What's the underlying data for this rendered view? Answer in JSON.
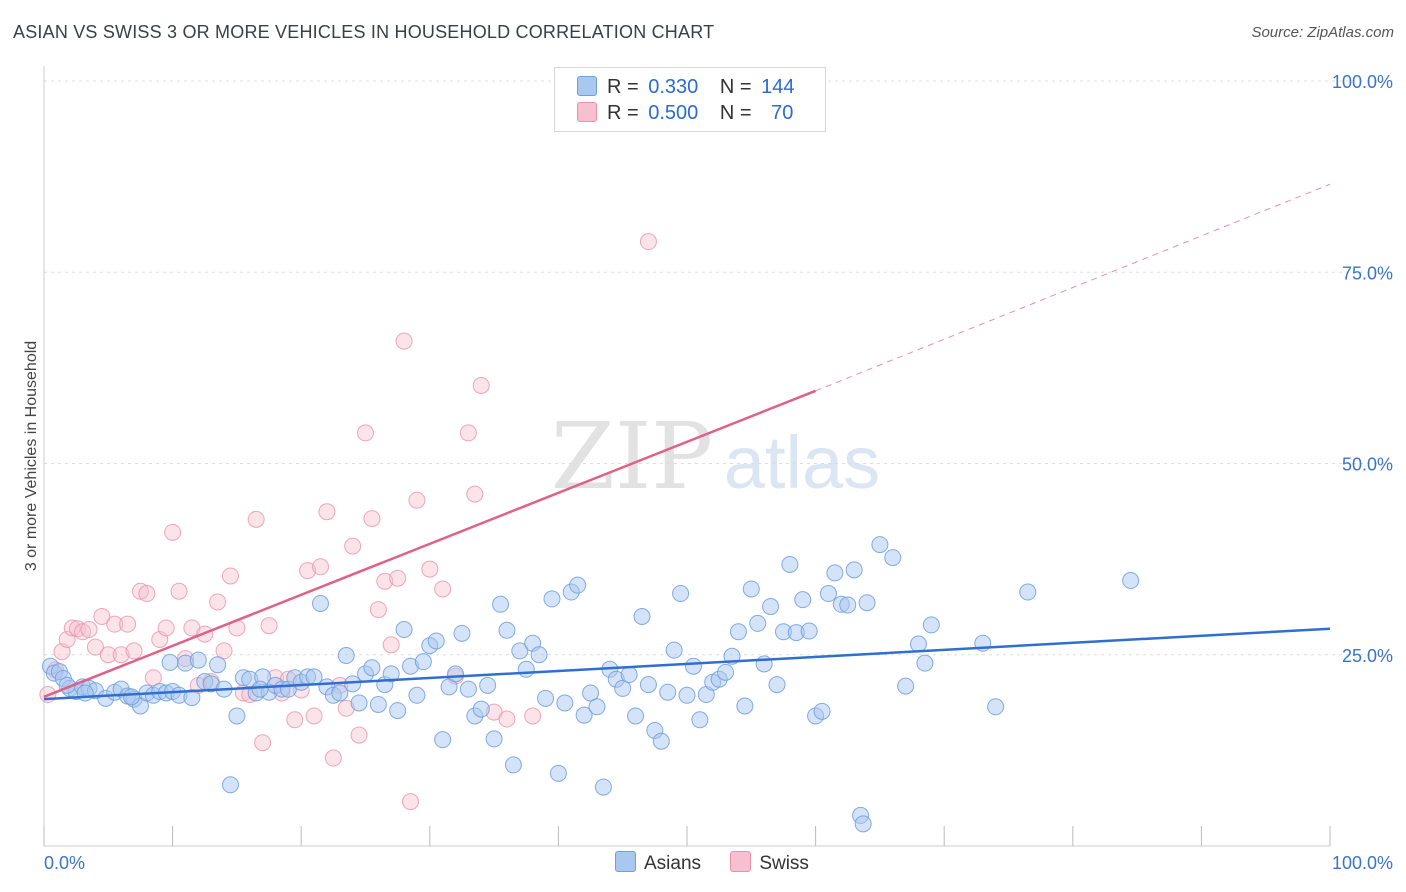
{
  "title": "ASIAN VS SWISS 3 OR MORE VEHICLES IN HOUSEHOLD CORRELATION CHART",
  "source": "Source: ZipAtlas.com",
  "watermark": {
    "zip": "ZIP",
    "atlas": "atlas"
  },
  "legend_top": [
    {
      "r_label": "R =",
      "r_value": "0.330",
      "n_label": "N =",
      "n_value": "144"
    },
    {
      "r_label": "R =",
      "r_value": "0.500",
      "n_label": "N =",
      "n_value": "70"
    }
  ],
  "legend_bottom": [
    "Asians",
    "Swiss"
  ],
  "colors": {
    "asians_fill": "#a9c8f0",
    "asians_stroke": "#6f9fdc",
    "asians_line": "#2f6fd0",
    "swiss_fill": "#f7c0d0",
    "swiss_stroke": "#ea92ac",
    "swiss_line": "#e06088",
    "tick_label": "#3a74c8",
    "grid": "#dddddd"
  },
  "chart_data": {
    "type": "scatter",
    "title": "ASIAN VS SWISS 3 OR MORE VEHICLES IN HOUSEHOLD CORRELATION CHART",
    "xlabel": "",
    "ylabel": "3 or more Vehicles in Household",
    "xlim": [
      0,
      100
    ],
    "ylim": [
      0,
      102
    ],
    "x_tick_labels": [
      "0.0%",
      "100.0%"
    ],
    "y_tick_labels": [
      "25.0%",
      "50.0%",
      "75.0%",
      "100.0%"
    ],
    "y_ticks": [
      25,
      50,
      75,
      100
    ],
    "grid": true,
    "legend_position": "top-center",
    "series": [
      {
        "name": "Asians",
        "r": 0.33,
        "n": 144,
        "trend": {
          "x": [
            0,
            100
          ],
          "y": [
            19.2,
            28.4
          ],
          "extrapolated_to": 100
        },
        "points": [
          [
            0.5,
            23.5
          ],
          [
            0.8,
            22.6
          ],
          [
            1.2,
            22.8
          ],
          [
            1.5,
            21.9
          ],
          [
            2.0,
            20.6
          ],
          [
            2.5,
            20.2
          ],
          [
            3.0,
            20.8
          ],
          [
            3.5,
            20.6
          ],
          [
            4.0,
            20.3
          ],
          [
            4.8,
            19.3
          ],
          [
            5.5,
            20.1
          ],
          [
            6.0,
            20.5
          ],
          [
            6.5,
            19.6
          ],
          [
            7.0,
            19.2
          ],
          [
            7.5,
            18.3
          ],
          [
            8.0,
            20.0
          ],
          [
            8.5,
            19.7
          ],
          [
            9.0,
            20.2
          ],
          [
            9.5,
            20.0
          ],
          [
            10.0,
            20.2
          ],
          [
            10.5,
            19.7
          ],
          [
            11.0,
            23.9
          ],
          [
            11.5,
            19.4
          ],
          [
            12.0,
            24.3
          ],
          [
            12.5,
            21.5
          ],
          [
            13.0,
            21.2
          ],
          [
            13.5,
            23.7
          ],
          [
            14.0,
            20.5
          ],
          [
            14.5,
            8.0
          ],
          [
            15.0,
            17.0
          ],
          [
            15.5,
            22.0
          ],
          [
            16.0,
            21.8
          ],
          [
            16.5,
            20.0
          ],
          [
            17.0,
            22.1
          ],
          [
            17.5,
            20.1
          ],
          [
            18.0,
            21.0
          ],
          [
            18.5,
            20.5
          ],
          [
            19.0,
            20.5
          ],
          [
            19.5,
            22.0
          ],
          [
            20.0,
            21.4
          ],
          [
            20.5,
            22.1
          ],
          [
            21.0,
            22.1
          ],
          [
            21.5,
            31.7
          ],
          [
            22.0,
            20.8
          ],
          [
            22.5,
            19.7
          ],
          [
            23.0,
            20.0
          ],
          [
            23.5,
            24.9
          ],
          [
            24.0,
            21.2
          ],
          [
            24.5,
            18.7
          ],
          [
            25.0,
            22.5
          ],
          [
            25.5,
            23.3
          ],
          [
            26.0,
            18.5
          ],
          [
            26.5,
            21.1
          ],
          [
            27.0,
            22.5
          ],
          [
            27.5,
            17.7
          ],
          [
            28.0,
            28.3
          ],
          [
            28.5,
            23.5
          ],
          [
            29.0,
            19.7
          ],
          [
            29.5,
            24.1
          ],
          [
            30.0,
            26.2
          ],
          [
            30.5,
            26.8
          ],
          [
            31.0,
            13.9
          ],
          [
            31.5,
            20.8
          ],
          [
            32.0,
            22.5
          ],
          [
            32.5,
            27.8
          ],
          [
            33.0,
            20.5
          ],
          [
            33.5,
            17.0
          ],
          [
            34.0,
            17.9
          ],
          [
            34.5,
            21.0
          ],
          [
            35.0,
            14.0
          ],
          [
            35.5,
            31.6
          ],
          [
            36.0,
            28.2
          ],
          [
            36.5,
            10.6
          ],
          [
            37.0,
            25.5
          ],
          [
            37.5,
            23.1
          ],
          [
            38.0,
            26.5
          ],
          [
            38.5,
            25.0
          ],
          [
            39.0,
            19.3
          ],
          [
            39.5,
            32.3
          ],
          [
            40.0,
            9.5
          ],
          [
            40.5,
            18.7
          ],
          [
            41.0,
            33.2
          ],
          [
            41.5,
            34.1
          ],
          [
            42.0,
            17.1
          ],
          [
            42.5,
            20.0
          ],
          [
            43.0,
            18.2
          ],
          [
            43.5,
            7.7
          ],
          [
            44.0,
            23.1
          ],
          [
            44.5,
            21.8
          ],
          [
            45.0,
            20.6
          ],
          [
            45.5,
            22.4
          ],
          [
            46.0,
            17.0
          ],
          [
            46.5,
            30.0
          ],
          [
            47.0,
            21.1
          ],
          [
            47.5,
            15.1
          ],
          [
            48.0,
            13.7
          ],
          [
            48.5,
            20.1
          ],
          [
            49.0,
            25.6
          ],
          [
            49.5,
            33.0
          ],
          [
            50.0,
            19.7
          ],
          [
            50.5,
            23.5
          ],
          [
            51.0,
            16.5
          ],
          [
            51.5,
            19.8
          ],
          [
            52.0,
            21.4
          ],
          [
            52.5,
            21.8
          ],
          [
            53.0,
            22.7
          ],
          [
            53.5,
            24.8
          ],
          [
            54.0,
            28.0
          ],
          [
            54.5,
            18.3
          ],
          [
            55.0,
            33.6
          ],
          [
            55.5,
            29.1
          ],
          [
            56.0,
            23.8
          ],
          [
            56.5,
            31.3
          ],
          [
            57.0,
            21.1
          ],
          [
            57.5,
            28.0
          ],
          [
            58.0,
            36.8
          ],
          [
            58.5,
            27.9
          ],
          [
            59.0,
            32.2
          ],
          [
            59.5,
            28.1
          ],
          [
            60.0,
            17.0
          ],
          [
            60.5,
            17.6
          ],
          [
            61.0,
            33.0
          ],
          [
            61.5,
            35.7
          ],
          [
            62.0,
            31.6
          ],
          [
            62.5,
            31.5
          ],
          [
            63.0,
            36.1
          ],
          [
            63.5,
            4.0
          ],
          [
            63.7,
            2.9
          ],
          [
            64.0,
            31.8
          ],
          [
            65.0,
            39.4
          ],
          [
            66.0,
            37.7
          ],
          [
            67.0,
            20.9
          ],
          [
            68.0,
            26.4
          ],
          [
            68.5,
            23.9
          ],
          [
            69.0,
            28.9
          ],
          [
            73.0,
            26.5
          ],
          [
            74.0,
            18.2
          ],
          [
            76.5,
            33.2
          ],
          [
            84.5,
            34.7
          ],
          [
            1.8,
            21.0
          ],
          [
            3.2,
            20.0
          ],
          [
            6.8,
            19.5
          ],
          [
            9.8,
            24.0
          ],
          [
            16.8,
            20.5
          ]
        ]
      },
      {
        "name": "Swiss",
        "r": 0.5,
        "n": 70,
        "trend": {
          "x": [
            0,
            60
          ],
          "y": [
            19.5,
            59.5
          ],
          "extrapolated_to": 100,
          "extrapolated_y": 86.5
        },
        "points": [
          [
            0.3,
            19.8
          ],
          [
            0.9,
            23.0
          ],
          [
            1.4,
            25.4
          ],
          [
            1.8,
            27.0
          ],
          [
            2.2,
            28.5
          ],
          [
            2.6,
            28.4
          ],
          [
            3.0,
            28.0
          ],
          [
            3.5,
            28.3
          ],
          [
            4.0,
            26.0
          ],
          [
            4.5,
            30.0
          ],
          [
            5.0,
            25.0
          ],
          [
            5.5,
            29.0
          ],
          [
            6.0,
            25.0
          ],
          [
            6.5,
            29.0
          ],
          [
            7.0,
            25.5
          ],
          [
            7.5,
            33.3
          ],
          [
            8.0,
            33.0
          ],
          [
            8.5,
            22.0
          ],
          [
            9.0,
            27.0
          ],
          [
            9.5,
            28.5
          ],
          [
            10.0,
            41.0
          ],
          [
            10.5,
            33.3
          ],
          [
            11.0,
            24.5
          ],
          [
            11.5,
            28.5
          ],
          [
            12.0,
            21.0
          ],
          [
            12.5,
            27.7
          ],
          [
            13.0,
            21.5
          ],
          [
            13.5,
            31.9
          ],
          [
            14.0,
            25.5
          ],
          [
            14.5,
            35.3
          ],
          [
            15.0,
            28.5
          ],
          [
            15.5,
            20.0
          ],
          [
            16.0,
            19.8
          ],
          [
            16.5,
            42.7
          ],
          [
            17.0,
            13.5
          ],
          [
            17.5,
            28.8
          ],
          [
            18.0,
            22.0
          ],
          [
            18.5,
            20.0
          ],
          [
            19.0,
            21.8
          ],
          [
            19.5,
            16.5
          ],
          [
            20.0,
            20.4
          ],
          [
            20.5,
            36.0
          ],
          [
            21.0,
            17.0
          ],
          [
            21.5,
            36.5
          ],
          [
            22.0,
            43.7
          ],
          [
            22.5,
            11.5
          ],
          [
            23.0,
            21.0
          ],
          [
            23.5,
            18.0
          ],
          [
            24.0,
            39.2
          ],
          [
            24.5,
            14.5
          ],
          [
            25.0,
            54.0
          ],
          [
            25.5,
            42.8
          ],
          [
            26.0,
            30.9
          ],
          [
            26.5,
            34.6
          ],
          [
            27.0,
            26.3
          ],
          [
            27.5,
            35.0
          ],
          [
            28.0,
            66.0
          ],
          [
            28.5,
            5.8
          ],
          [
            29.0,
            45.2
          ],
          [
            30.0,
            36.2
          ],
          [
            31.0,
            33.6
          ],
          [
            32.0,
            22.2
          ],
          [
            33.0,
            54.0
          ],
          [
            33.5,
            46.0
          ],
          [
            34.0,
            60.2
          ],
          [
            35.0,
            17.5
          ],
          [
            36.0,
            16.6
          ],
          [
            38.0,
            17.0
          ],
          [
            47.0,
            79.0
          ],
          [
            52.0,
            100.0
          ]
        ]
      }
    ]
  }
}
